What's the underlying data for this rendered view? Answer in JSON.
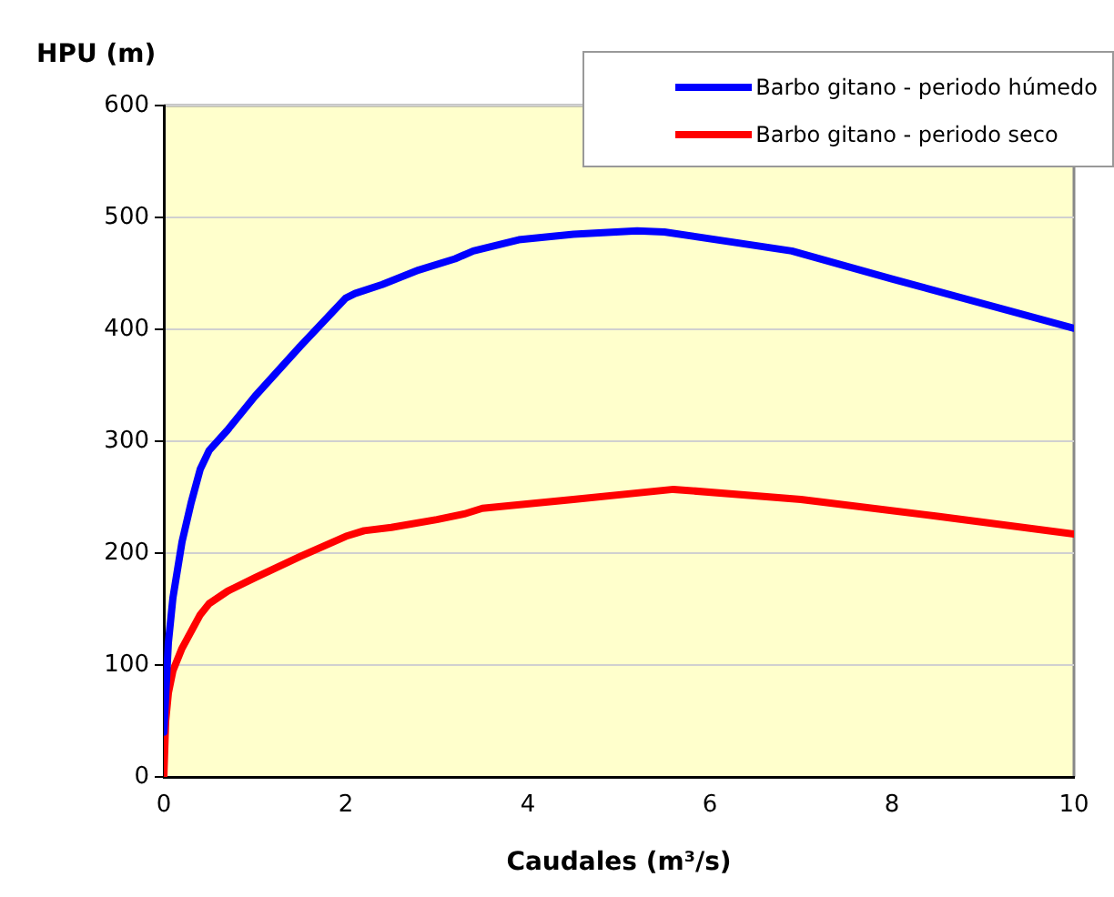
{
  "chart_data": {
    "type": "line",
    "xlabel": "Caudales (m³/s)",
    "ylabel": "HPU (m)",
    "xlim": [
      0,
      10
    ],
    "xticks": [
      0,
      2,
      4,
      6,
      8,
      10
    ],
    "ylim": [
      0,
      600
    ],
    "yticks": [
      0,
      100,
      200,
      300,
      400,
      500,
      600
    ],
    "grid": "y",
    "legend": "top right",
    "marker": "none",
    "line_style": "solid",
    "series": [
      {
        "name": "Barbo gitano - periodo húmedo",
        "color": "#0000ff",
        "x": [
          0,
          0.05,
          0.1,
          0.2,
          0.3,
          0.4,
          0.5,
          0.7,
          1,
          1.5,
          2,
          2.1,
          2.4,
          2.8,
          3.2,
          3.4,
          3.9,
          4.5,
          5.2,
          5.5,
          6.9,
          8,
          10
        ],
        "values": [
          40,
          120,
          160,
          210,
          245,
          275,
          292,
          310,
          340,
          385,
          428,
          432,
          440,
          453,
          463,
          470,
          480,
          485,
          488,
          487,
          470,
          445,
          401
        ]
      },
      {
        "name": "Barbo gitano - periodo seco",
        "color": "#ff0000",
        "x": [
          0,
          0.02,
          0.05,
          0.1,
          0.2,
          0.3,
          0.4,
          0.5,
          0.7,
          1,
          1.5,
          2,
          2.2,
          2.5,
          3,
          3.3,
          3.5,
          4.5,
          5.6,
          7,
          8.5,
          10
        ],
        "values": [
          0,
          50,
          75,
          95,
          115,
          130,
          145,
          155,
          166,
          178,
          197,
          215,
          220,
          223,
          230,
          235,
          240,
          248,
          257,
          248,
          233,
          217
        ]
      }
    ]
  }
}
